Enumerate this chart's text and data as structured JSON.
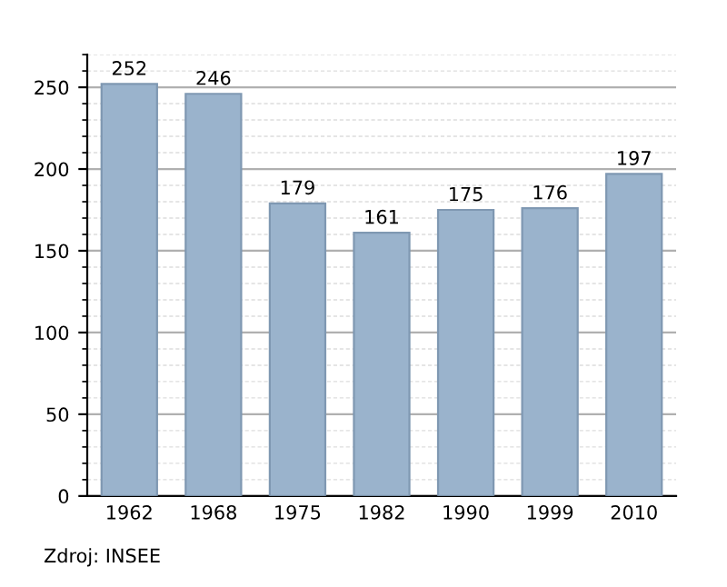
{
  "chart_data": {
    "type": "bar",
    "categories": [
      "1962",
      "1968",
      "1975",
      "1982",
      "1990",
      "1999",
      "2010"
    ],
    "values": [
      252,
      246,
      179,
      161,
      175,
      176,
      197
    ],
    "color": "#9ab3cc",
    "data_labels": true,
    "ylim": [
      0,
      270
    ],
    "yticks": [
      0,
      50,
      100,
      150,
      200,
      250
    ],
    "grid": "y",
    "annotations": [
      "Zdroj: INSEE"
    ]
  }
}
